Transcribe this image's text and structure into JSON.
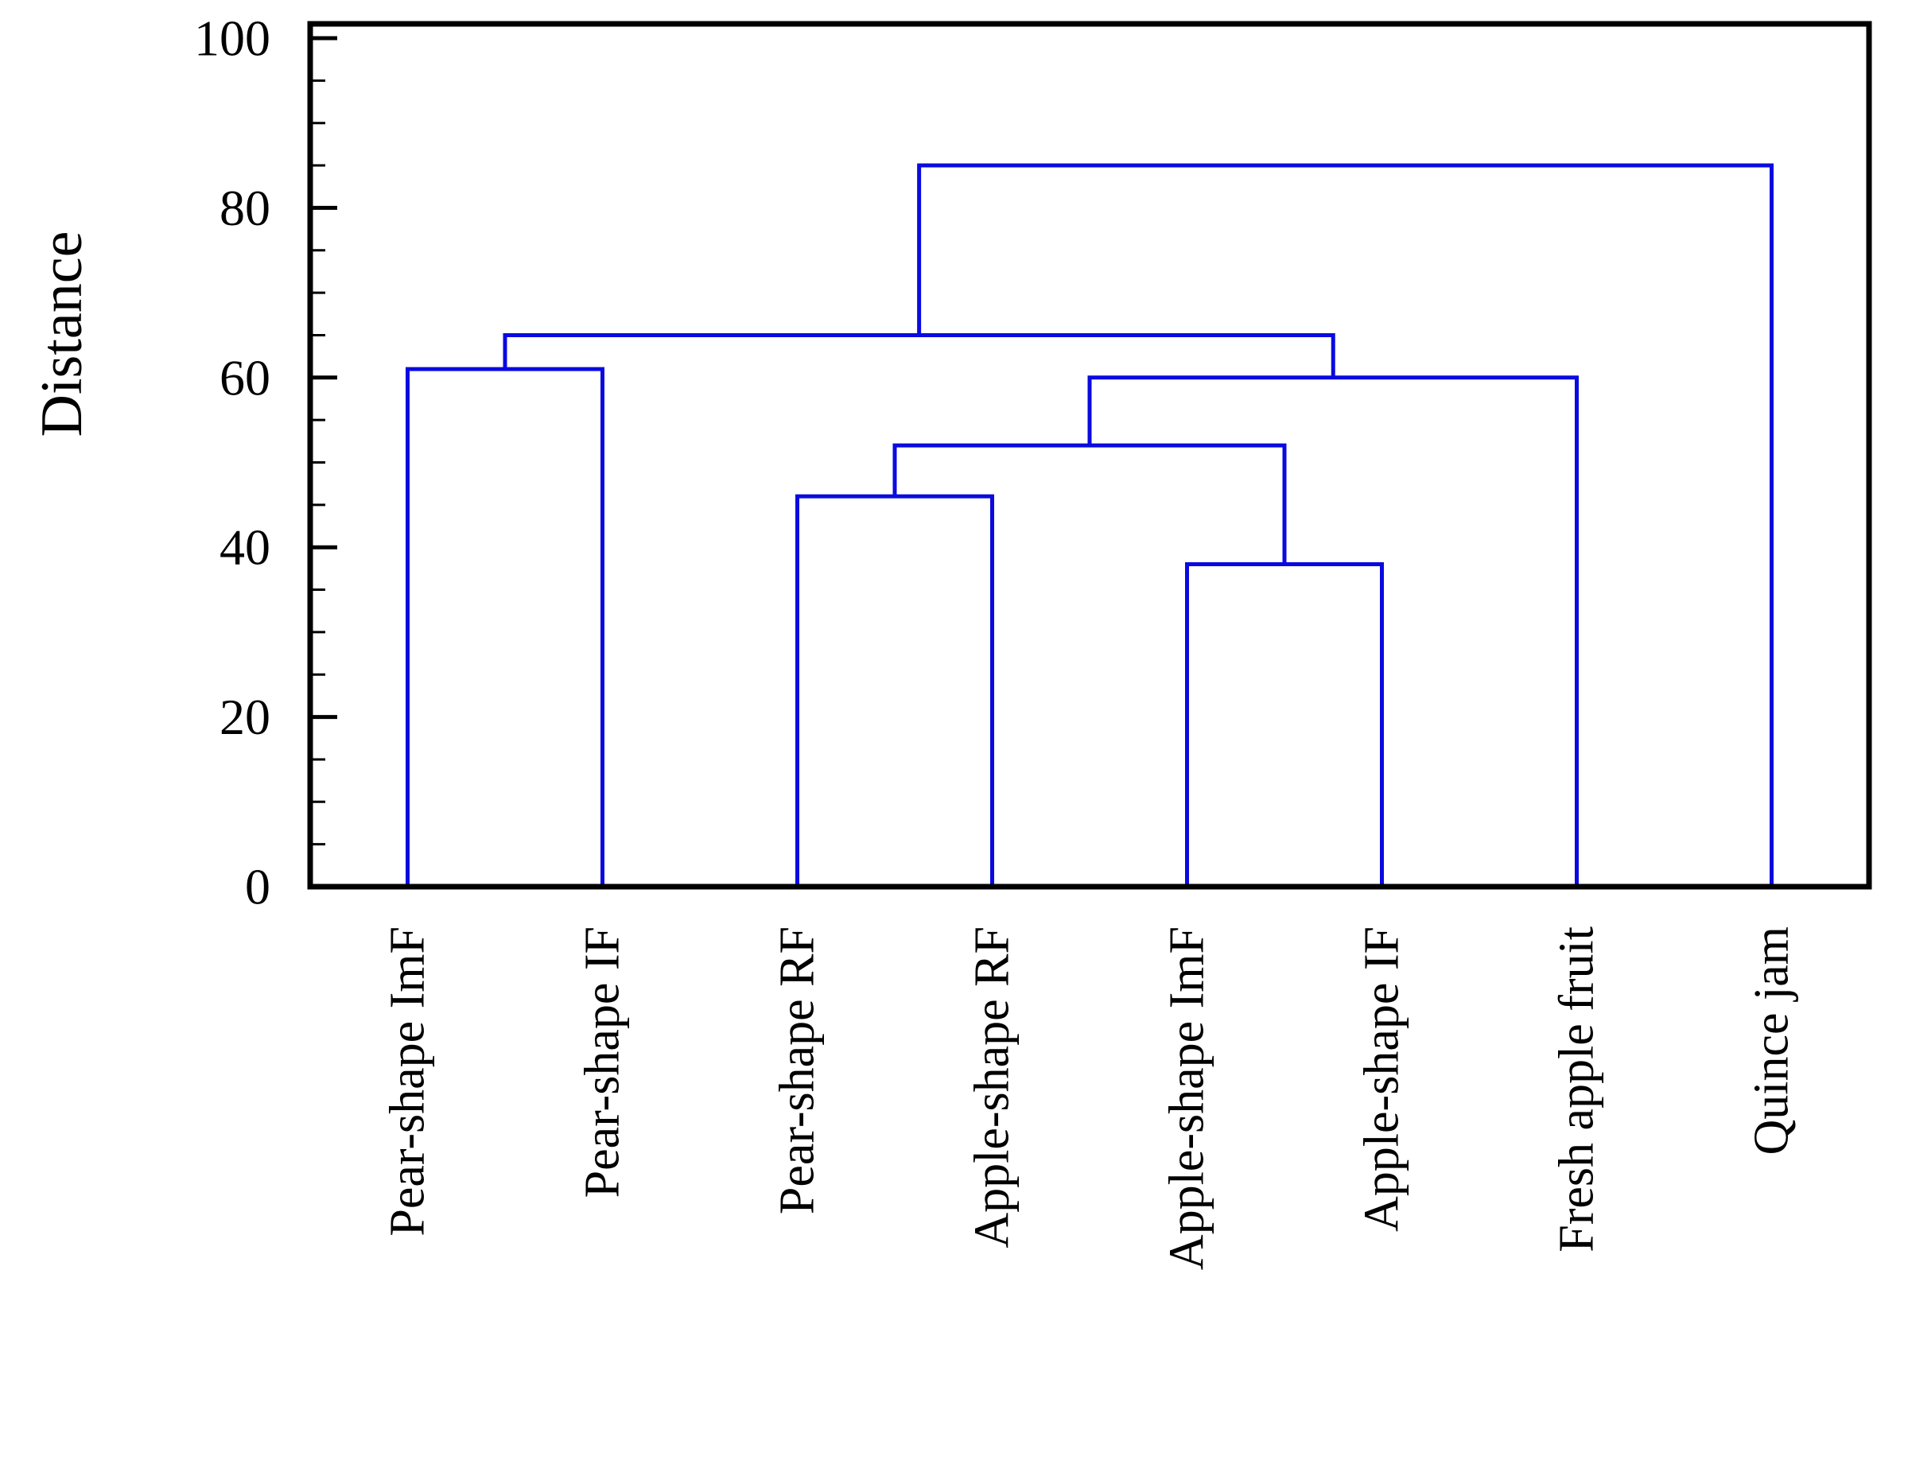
{
  "figure": {
    "background": "#ffffff"
  },
  "chart_data": {
    "type": "dendrogram",
    "title": "",
    "xlabel": "",
    "ylabel": "Distance",
    "ylim": [
      0,
      100
    ],
    "yticks": [
      0,
      20,
      40,
      60,
      80,
      100
    ],
    "minor_tick_step": 5,
    "grid": false,
    "legend": false,
    "line_color": "#0a0ae0",
    "axis_color": "#000000",
    "leaves": [
      "Pear-shape ImF",
      "Pear-shape IF",
      "Pear-shape RF",
      "Apple-shape RF",
      "Apple-shape ImF",
      "Apple-shape IF",
      "Fresh apple fruit",
      "Quince jam"
    ],
    "merges": [
      {
        "id": "apple-imf-if-pair",
        "children": [
          "Apple-shape ImF",
          "Apple-shape IF"
        ],
        "height": 38
      },
      {
        "id": "rf-pair",
        "children": [
          "Pear-shape RF",
          "Apple-shape RF"
        ],
        "height": 46
      },
      {
        "id": "rf-plus-apple-pair",
        "children": [
          "rf-pair",
          "apple-imf-if-pair"
        ],
        "height": 52
      },
      {
        "id": "plus-fresh-apple",
        "children": [
          "rf-plus-apple-pair",
          "Fresh apple fruit"
        ],
        "height": 60
      },
      {
        "id": "pear-pair",
        "children": [
          "Pear-shape ImF",
          "Pear-shape IF"
        ],
        "height": 61
      },
      {
        "id": "pear-plus-rest",
        "children": [
          "pear-pair",
          "plus-fresh-apple"
        ],
        "height": 65
      },
      {
        "id": "root-quince-jam",
        "children": [
          "pear-plus-rest",
          "Quince jam"
        ],
        "height": 85
      }
    ]
  }
}
